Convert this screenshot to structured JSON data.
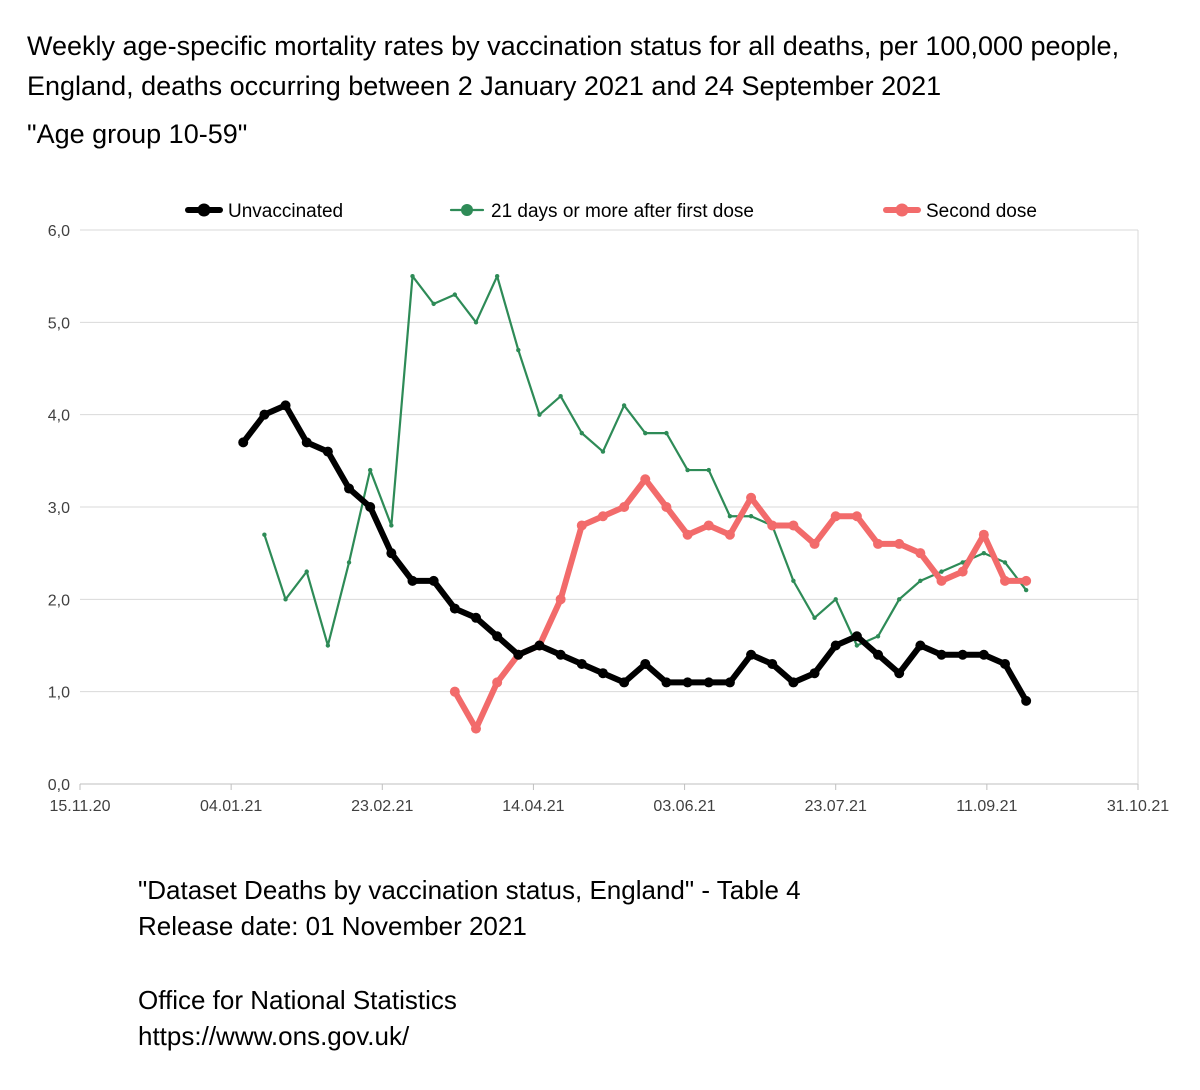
{
  "title": {
    "line1": "Weekly age-specific mortality rates by vaccination status for all deaths, per 100,000 people,",
    "line2": "England, deaths occurring between 2 January 2021 and 24 September 2021"
  },
  "subtitle": "\"Age group 10-59\"",
  "footer": {
    "source": "\"Dataset Deaths by vaccination status, England\" - Table 4",
    "release": "Release date: 01 November 2021",
    "org": "Office for National Statistics",
    "url": "https://www.ons.gov.uk/"
  },
  "chart_data": {
    "type": "line",
    "x_type": "date",
    "xlim": [
      "2020-11-15",
      "2021-10-31"
    ],
    "ylim": [
      0,
      6
    ],
    "x_ticks": [
      "2020-11-15",
      "2021-01-04",
      "2021-02-23",
      "2021-04-14",
      "2021-06-03",
      "2021-07-23",
      "2021-09-11",
      "2021-10-31"
    ],
    "x_tick_labels": [
      "15.11.20",
      "04.01.21",
      "23.02.21",
      "14.04.21",
      "03.06.21",
      "23.07.21",
      "11.09.21",
      "31.10.21"
    ],
    "y_ticks": [
      0,
      1,
      2,
      3,
      4,
      5,
      6
    ],
    "y_tick_labels": [
      "0,0",
      "1,0",
      "2,0",
      "3,0",
      "4,0",
      "5,0",
      "6,0"
    ],
    "grid": true,
    "legend_position": "top",
    "series": [
      {
        "name": "Unvaccinated",
        "color": "#000000",
        "x": [
          "2021-01-08",
          "2021-01-15",
          "2021-01-22",
          "2021-01-29",
          "2021-02-05",
          "2021-02-12",
          "2021-02-19",
          "2021-02-26",
          "2021-03-05",
          "2021-03-12",
          "2021-03-19",
          "2021-03-26",
          "2021-04-02",
          "2021-04-09",
          "2021-04-16",
          "2021-04-23",
          "2021-04-30",
          "2021-05-07",
          "2021-05-14",
          "2021-05-21",
          "2021-05-28",
          "2021-06-04",
          "2021-06-11",
          "2021-06-18",
          "2021-06-25",
          "2021-07-02",
          "2021-07-09",
          "2021-07-16",
          "2021-07-23",
          "2021-07-30",
          "2021-08-06",
          "2021-08-13",
          "2021-08-20",
          "2021-08-27",
          "2021-09-03",
          "2021-09-10",
          "2021-09-17",
          "2021-09-24"
        ],
        "values": [
          3.7,
          4.0,
          4.1,
          3.7,
          3.6,
          3.2,
          3.0,
          2.5,
          2.2,
          2.2,
          1.9,
          1.8,
          1.6,
          1.4,
          1.5,
          1.4,
          1.3,
          1.2,
          1.1,
          1.3,
          1.1,
          1.1,
          1.1,
          1.1,
          1.4,
          1.3,
          1.1,
          1.2,
          1.5,
          1.6,
          1.4,
          1.2,
          1.5,
          1.4,
          1.4,
          1.4,
          1.3,
          0.9
        ]
      },
      {
        "name": "21 days or more after first dose",
        "color": "#2e8b57",
        "x": [
          "2021-01-15",
          "2021-01-22",
          "2021-01-29",
          "2021-02-05",
          "2021-02-12",
          "2021-02-19",
          "2021-02-26",
          "2021-03-05",
          "2021-03-12",
          "2021-03-19",
          "2021-03-26",
          "2021-04-02",
          "2021-04-09",
          "2021-04-16",
          "2021-04-23",
          "2021-04-30",
          "2021-05-07",
          "2021-05-14",
          "2021-05-21",
          "2021-05-28",
          "2021-06-04",
          "2021-06-11",
          "2021-06-18",
          "2021-06-25",
          "2021-07-02",
          "2021-07-09",
          "2021-07-16",
          "2021-07-23",
          "2021-07-30",
          "2021-08-06",
          "2021-08-13",
          "2021-08-20",
          "2021-08-27",
          "2021-09-03",
          "2021-09-10",
          "2021-09-17",
          "2021-09-24"
        ],
        "values": [
          2.7,
          2.0,
          2.3,
          1.5,
          2.4,
          3.4,
          2.8,
          5.5,
          5.2,
          5.3,
          5.0,
          5.5,
          4.7,
          4.0,
          4.2,
          3.8,
          3.6,
          4.1,
          3.8,
          3.8,
          3.4,
          3.4,
          2.9,
          2.9,
          2.8,
          2.2,
          1.8,
          2.0,
          1.5,
          1.6,
          2.0,
          2.2,
          2.3,
          2.4,
          2.5,
          2.4,
          2.1
        ]
      },
      {
        "name": "Second dose",
        "color": "#f26b6b",
        "x": [
          "2021-03-19",
          "2021-03-26",
          "2021-04-02",
          "2021-04-09",
          "2021-04-16",
          "2021-04-23",
          "2021-04-30",
          "2021-05-07",
          "2021-05-14",
          "2021-05-21",
          "2021-05-28",
          "2021-06-04",
          "2021-06-11",
          "2021-06-18",
          "2021-06-25",
          "2021-07-02",
          "2021-07-09",
          "2021-07-16",
          "2021-07-23",
          "2021-07-30",
          "2021-08-06",
          "2021-08-13",
          "2021-08-20",
          "2021-08-27",
          "2021-09-03",
          "2021-09-10",
          "2021-09-17",
          "2021-09-24"
        ],
        "values": [
          1.0,
          0.6,
          1.1,
          1.4,
          1.5,
          2.0,
          2.8,
          2.9,
          3.0,
          3.3,
          3.0,
          2.7,
          2.8,
          2.7,
          3.1,
          2.8,
          2.8,
          2.6,
          2.9,
          2.9,
          2.6,
          2.6,
          2.5,
          2.2,
          2.3,
          2.7,
          2.2,
          2.2
        ]
      }
    ]
  }
}
